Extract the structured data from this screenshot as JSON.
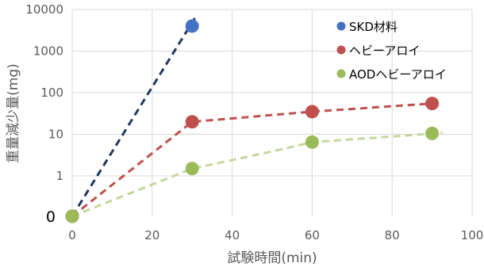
{
  "chart_data": {
    "type": "scatter",
    "title": "",
    "xlabel": "試験時間(min)",
    "ylabel": "重量減少量(mg)",
    "xlim": [
      0,
      100
    ],
    "x_ticks": [
      "0",
      "20",
      "40",
      "60",
      "80",
      "100"
    ],
    "yscale": "log",
    "y_ticks": [
      "0",
      "1",
      "10",
      "100",
      "1000",
      "10000"
    ],
    "grid": true,
    "legend_position": "top-right",
    "series": [
      {
        "name": "SKD材料",
        "color": "#4472C4",
        "trend_color": "#203864",
        "x": [
          0,
          30
        ],
        "y": [
          0,
          4000
        ],
        "trendline": "dashed"
      },
      {
        "name": "ヘビーアロイ",
        "color": "#C0504D",
        "trend_color": "#C0504D",
        "x": [
          0,
          30,
          60,
          90
        ],
        "y": [
          0,
          20,
          35,
          55
        ],
        "trendline": "dashed"
      },
      {
        "name": "AODヘビーアロイ",
        "color": "#9BBB59",
        "trend_color": "#C4D79B",
        "x": [
          0,
          30,
          60,
          90
        ],
        "y": [
          0,
          1.5,
          6.5,
          10.5
        ],
        "trendline": "dashed"
      }
    ]
  }
}
